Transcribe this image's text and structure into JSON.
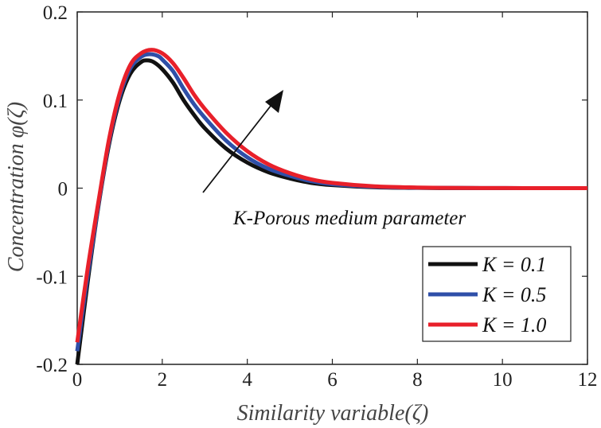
{
  "chart_data": {
    "type": "line",
    "title": "",
    "xlabel": "Similarity variable(ζ)",
    "ylabel": "Concentration φ(ζ)",
    "xlim": [
      0,
      12
    ],
    "ylim": [
      -0.2,
      0.2
    ],
    "xticks": [
      0,
      2,
      4,
      6,
      8,
      10,
      12
    ],
    "xtick_labels": [
      "0",
      "2",
      "4",
      "6",
      "8",
      "10",
      "12"
    ],
    "yticks": [
      -0.2,
      -0.1,
      0,
      0.1,
      0.2
    ],
    "ytick_labels": [
      "-0.2",
      "-0.1",
      "0",
      "0.1",
      "0.2"
    ],
    "grid": false,
    "legend_position": "bottom-right",
    "annotation": "K-Porous medium parameter",
    "series": [
      {
        "name": "K = 0.1",
        "color": "#111111",
        "x": [
          0,
          0.25,
          0.5,
          0.75,
          1.0,
          1.25,
          1.5,
          1.65,
          1.8,
          2.0,
          2.25,
          2.5,
          2.75,
          3.0,
          3.5,
          4.0,
          4.5,
          5.0,
          5.5,
          6.0,
          7.0,
          8.0,
          9.0,
          10.0,
          11.0,
          12.0
        ],
        "y": [
          -0.2,
          -0.105,
          -0.02,
          0.05,
          0.1,
          0.13,
          0.143,
          0.145,
          0.143,
          0.135,
          0.12,
          0.1,
          0.083,
          0.068,
          0.045,
          0.029,
          0.018,
          0.011,
          0.006,
          0.0035,
          0.001,
          0.0003,
          0.0001,
          0.0,
          0.0,
          0.0
        ]
      },
      {
        "name": "K = 0.5",
        "color": "#2f4fa8",
        "x": [
          0,
          0.25,
          0.5,
          0.75,
          1.0,
          1.25,
          1.5,
          1.7,
          1.9,
          2.0,
          2.25,
          2.5,
          2.75,
          3.0,
          3.5,
          4.0,
          4.5,
          5.0,
          5.5,
          6.0,
          7.0,
          8.0,
          9.0,
          10.0,
          11.0,
          12.0
        ],
        "y": [
          -0.185,
          -0.098,
          -0.018,
          0.053,
          0.104,
          0.136,
          0.149,
          0.152,
          0.15,
          0.146,
          0.133,
          0.113,
          0.095,
          0.08,
          0.054,
          0.035,
          0.022,
          0.014,
          0.008,
          0.0045,
          0.0015,
          0.0005,
          0.0002,
          0.0001,
          0.0,
          0.0
        ]
      },
      {
        "name": "K = 1.0",
        "color": "#e8202a",
        "x": [
          0,
          0.25,
          0.5,
          0.75,
          1.0,
          1.25,
          1.5,
          1.75,
          2.0,
          2.25,
          2.5,
          2.75,
          3.0,
          3.5,
          4.0,
          4.5,
          5.0,
          5.5,
          6.0,
          7.0,
          8.0,
          9.0,
          10.0,
          11.0,
          12.0
        ],
        "y": [
          -0.175,
          -0.09,
          -0.015,
          0.056,
          0.108,
          0.14,
          0.153,
          0.157,
          0.153,
          0.142,
          0.125,
          0.106,
          0.09,
          0.063,
          0.042,
          0.027,
          0.017,
          0.01,
          0.006,
          0.002,
          0.0007,
          0.0002,
          0.0001,
          0.0,
          0.0
        ]
      }
    ]
  }
}
